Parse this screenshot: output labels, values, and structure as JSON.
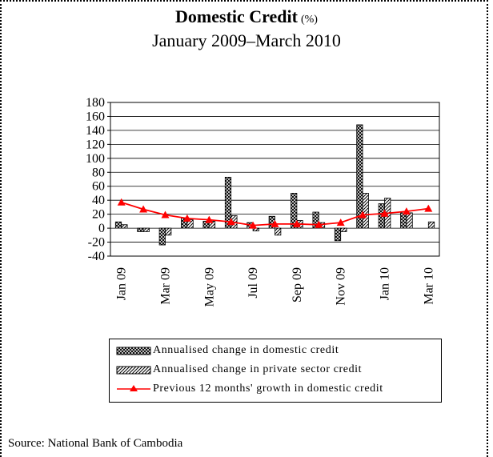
{
  "header": {
    "title": "Domestic Credit",
    "title_unit": "(%)",
    "subtitle": "January 2009–March 2010"
  },
  "source": "Source: National Bank of Cambodia",
  "chart_data": {
    "type": "bar",
    "title": "Domestic Credit (%)",
    "subtitle": "January 2009–March 2010",
    "categories": [
      "Jan 09",
      "Feb 09",
      "Mar 09",
      "Apr 09",
      "May 09",
      "Jun 09",
      "Jul 09",
      "Aug 09",
      "Sep 09",
      "Oct 09",
      "Nov 09",
      "Dec 09",
      "Jan 10",
      "Feb 10",
      "Mar 10"
    ],
    "tick_labels": [
      "Jan 09",
      "Mar 09",
      "May 09",
      "Jul 09",
      "Sep 09",
      "Nov 09",
      "Jan 10",
      "Mar 10"
    ],
    "y_ticks": [
      180,
      160,
      140,
      120,
      100,
      80,
      60,
      40,
      20,
      0,
      -20,
      -40
    ],
    "ylim": [
      -40,
      180
    ],
    "grid": true,
    "legend_position": "bottom",
    "series": [
      {
        "name": "Annualised change in domestic credit",
        "type": "bar",
        "pattern": "crosshatch",
        "values": [
          9,
          -5,
          -24,
          15,
          10,
          73,
          8,
          17,
          50,
          23,
          -18,
          148,
          35,
          23,
          null
        ]
      },
      {
        "name": "Annualised change in private sector credit",
        "type": "bar",
        "pattern": "diagonal-stripes",
        "values": [
          5,
          -5,
          -10,
          12,
          10,
          18,
          -4,
          -10,
          11,
          8,
          -5,
          50,
          43,
          22,
          9
        ]
      },
      {
        "name": "Previous 12 months' growth in domestic credit",
        "type": "line",
        "color": "#ff0000",
        "values": [
          37,
          27,
          19,
          14,
          12,
          9,
          4,
          6,
          6,
          5,
          8,
          19,
          21,
          24,
          28
        ]
      }
    ]
  }
}
